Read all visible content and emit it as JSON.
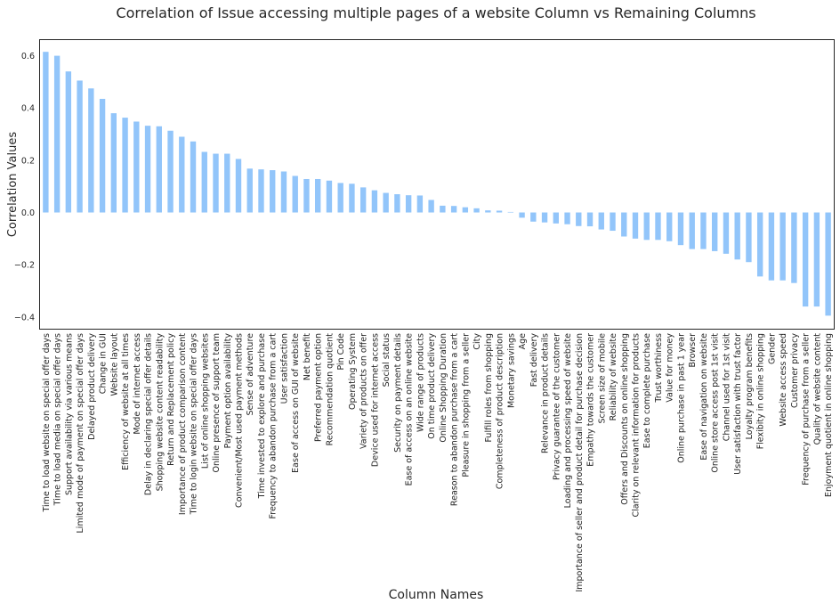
{
  "chart_data": {
    "type": "bar",
    "title": "Correlation of Issue accessing multiple pages of a website Column vs Remaining Columns",
    "xlabel": "Column Names",
    "ylabel": "Correlation Values",
    "ylim": [
      -0.445,
      0.66
    ],
    "yticks": [
      -0.4,
      -0.2,
      0.0,
      0.2,
      0.4,
      0.6
    ],
    "ytick_labels": [
      "−0.4",
      "−0.2",
      "0.0",
      "0.2",
      "0.4",
      "0.6"
    ],
    "grid": false,
    "legend": "none",
    "bar_color": "#92c5fa",
    "categories": [
      "Time to load website on special offer days",
      "Time to load media on special offer days",
      "Support availability via various means",
      "Limited mode of payment on special offer days",
      "Delayed product delivery",
      "Change in GUI",
      "Website layout",
      "Efficiency of website at all times",
      "Mode of internet access",
      "Delay in declaring special offer details",
      "Shopping website content readability",
      "Return and Replacement policy",
      "Importance of product comparison content",
      "Time to login website on special offer days",
      "List of online shopping websites",
      "Online presence of support team",
      "Payment option availability",
      "Convenient/Most used payment methods",
      "Sense of adventure",
      "Time invested to explore and purchase",
      "Frequency to abandon purchase from a cart",
      "User satisfaction",
      "Ease of access on GUI of website",
      "Net benefit",
      "Preferred payment option",
      "Recommendation quotient",
      "Pin Code",
      "Operating System",
      "Variety of products on offer",
      "Device used for internet access",
      "Social status",
      "Security on payment details",
      "Ease of access on an online website",
      "Wide range of products",
      "On time product delivery",
      "Online Shopping Duration",
      "Reason to abandon purchase from a cart",
      "Pleasure in shopping from a seller",
      "City",
      "Fulfill roles from shopping",
      "Completeness of product description",
      "Monetary savings",
      "Age",
      "Fast delivery",
      "Relevance in product details",
      "Privacy guarantee of the customer",
      "Loading and processing speed of website",
      "Importance of seller and product detail for purchase decision",
      "Empathy towards the customer",
      "Screen size of mobile",
      "Reliability of website",
      "Offers and Discounts on online shopping",
      "Clarity on relevant information for products",
      "Ease to complete purchase",
      "Trust worthiness",
      "Value for money",
      "Online purchase in past 1 year",
      "Browser",
      "Ease of navigation on website",
      "Online store access post 1st visit",
      "Channel used for 1st visit",
      "User satisfaction with trust factor",
      "Loyalty program benefits",
      "Flexibity in online shopping",
      "Gender",
      "Website access speed",
      "Customer privacy",
      "Frequency of purchase from a seller",
      "Quality of website content",
      "Enjoyment quotient in online shopping"
    ],
    "values": [
      0.615,
      0.6,
      0.54,
      0.505,
      0.475,
      0.435,
      0.38,
      0.363,
      0.348,
      0.332,
      0.33,
      0.313,
      0.29,
      0.272,
      0.232,
      0.225,
      0.225,
      0.205,
      0.168,
      0.165,
      0.162,
      0.157,
      0.14,
      0.128,
      0.128,
      0.122,
      0.113,
      0.11,
      0.096,
      0.085,
      0.075,
      0.07,
      0.066,
      0.065,
      0.048,
      0.026,
      0.025,
      0.02,
      0.016,
      0.008,
      0.007,
      0.002,
      -0.02,
      -0.035,
      -0.038,
      -0.042,
      -0.045,
      -0.052,
      -0.053,
      -0.065,
      -0.07,
      -0.092,
      -0.1,
      -0.105,
      -0.105,
      -0.11,
      -0.125,
      -0.14,
      -0.14,
      -0.148,
      -0.158,
      -0.18,
      -0.19,
      -0.245,
      -0.26,
      -0.26,
      -0.27,
      -0.36,
      -0.36,
      -0.395
    ]
  }
}
